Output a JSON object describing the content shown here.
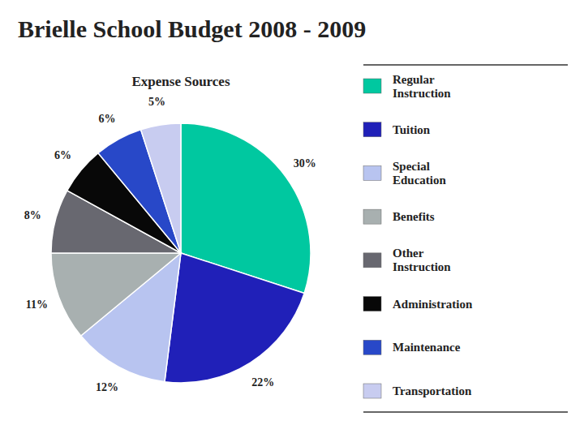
{
  "chart_data": {
    "type": "pie",
    "title": "Brielle School Budget 2008 - 2009",
    "subtitle": "Expense Sources",
    "categories": [
      "Regular\nInstruction",
      "Tuition",
      "Special\nEducation",
      "Benefits",
      "Other\nInstruction",
      "Administration",
      "Maintenance",
      "Transportation"
    ],
    "values": [
      30,
      22,
      12,
      11,
      8,
      6,
      6,
      5
    ],
    "value_labels": [
      "30%",
      "22%",
      "12%",
      "11%",
      "8%",
      "6%",
      "6%",
      "5%"
    ],
    "colors": [
      "#00C8A0",
      "#2020B8",
      "#B8C4F0",
      "#A8B0B0",
      "#686870",
      "#080808",
      "#2848C8",
      "#C8CCF0"
    ],
    "data_labels": true,
    "legend": "right"
  }
}
